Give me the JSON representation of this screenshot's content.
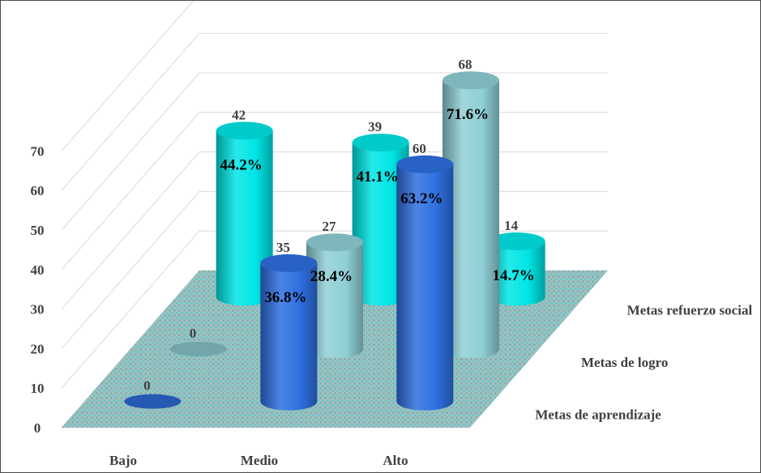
{
  "chart_data": {
    "type": "bar",
    "subtype": "3d-cylinder",
    "title": "",
    "xlabel": "",
    "ylabel": "",
    "ylim": [
      0,
      70
    ],
    "yticks": [
      0,
      10,
      20,
      30,
      40,
      50,
      60,
      70
    ],
    "grid": true,
    "categories": [
      "Bajo",
      "Medio",
      "Alto"
    ],
    "series": [
      {
        "name": "Metas de aprendizaje",
        "color": "#2E6FE0",
        "values": [
          0,
          35,
          60
        ],
        "percent_labels": [
          "",
          "36.8%",
          "63.2%"
        ]
      },
      {
        "name": "Metas de logro",
        "color": "#8FCFD6",
        "values": [
          0,
          27,
          68
        ],
        "percent_labels": [
          "",
          "28.4%",
          "71.6%"
        ]
      },
      {
        "name": "Metas refuerzo social",
        "color": "#00E5E5",
        "values": [
          42,
          39,
          14
        ],
        "percent_labels": [
          "44.2%",
          "41.1%",
          "14.7%"
        ]
      }
    ],
    "floor_color": "#8FB5B5"
  }
}
